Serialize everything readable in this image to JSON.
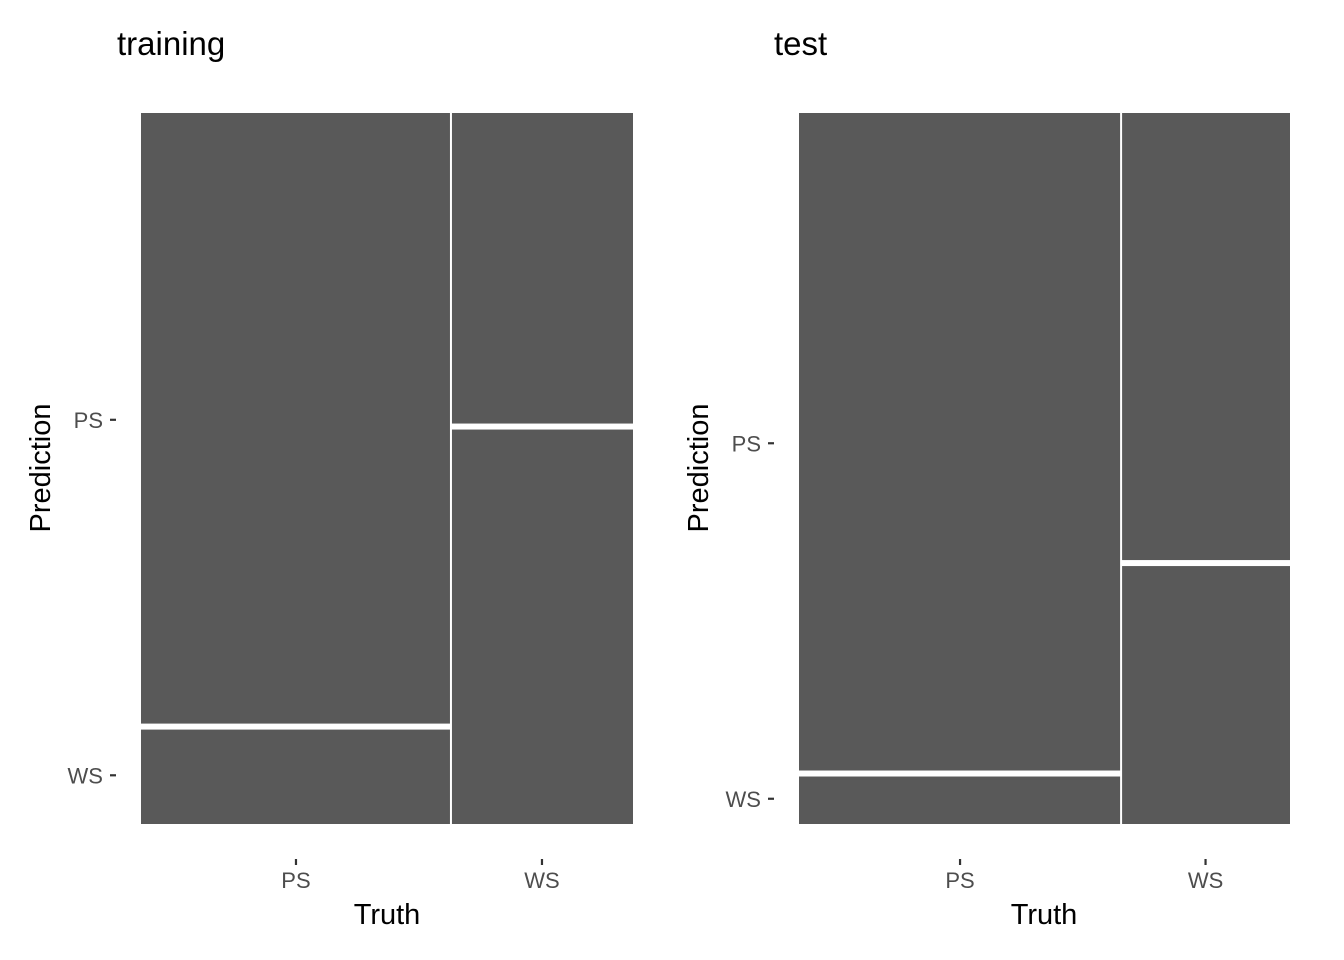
{
  "colors": {
    "tile_fill": "#595959",
    "tile_border": "#ffffff",
    "tick_label": "#4d4d4d",
    "tick_mark": "#333333",
    "background": "#ffffff"
  },
  "chart_data": [
    {
      "type": "mosaic",
      "title": "training",
      "xlabel": "Truth",
      "ylabel": "Prediction",
      "categories": [
        "PS",
        "WS"
      ],
      "y_categories": [
        "PS",
        "WS"
      ],
      "column_shares": {
        "PS": 0.63,
        "WS": 0.37
      },
      "cells": [
        {
          "truth": "PS",
          "prediction": "PS",
          "share_within_truth": 0.863
        },
        {
          "truth": "PS",
          "prediction": "WS",
          "share_within_truth": 0.137
        },
        {
          "truth": "WS",
          "prediction": "PS",
          "share_within_truth": 0.441
        },
        {
          "truth": "WS",
          "prediction": "WS",
          "share_within_truth": 0.559
        }
      ],
      "grid": false
    },
    {
      "type": "mosaic",
      "title": "test",
      "xlabel": "Truth",
      "ylabel": "Prediction",
      "categories": [
        "PS",
        "WS"
      ],
      "y_categories": [
        "PS",
        "WS"
      ],
      "column_shares": {
        "PS": 0.656,
        "WS": 0.344
      },
      "cells": [
        {
          "truth": "PS",
          "prediction": "PS",
          "share_within_truth": 0.929
        },
        {
          "truth": "PS",
          "prediction": "WS",
          "share_within_truth": 0.071
        },
        {
          "truth": "WS",
          "prediction": "PS",
          "share_within_truth": 0.633
        },
        {
          "truth": "WS",
          "prediction": "WS",
          "share_within_truth": 0.367
        }
      ],
      "grid": false
    }
  ]
}
